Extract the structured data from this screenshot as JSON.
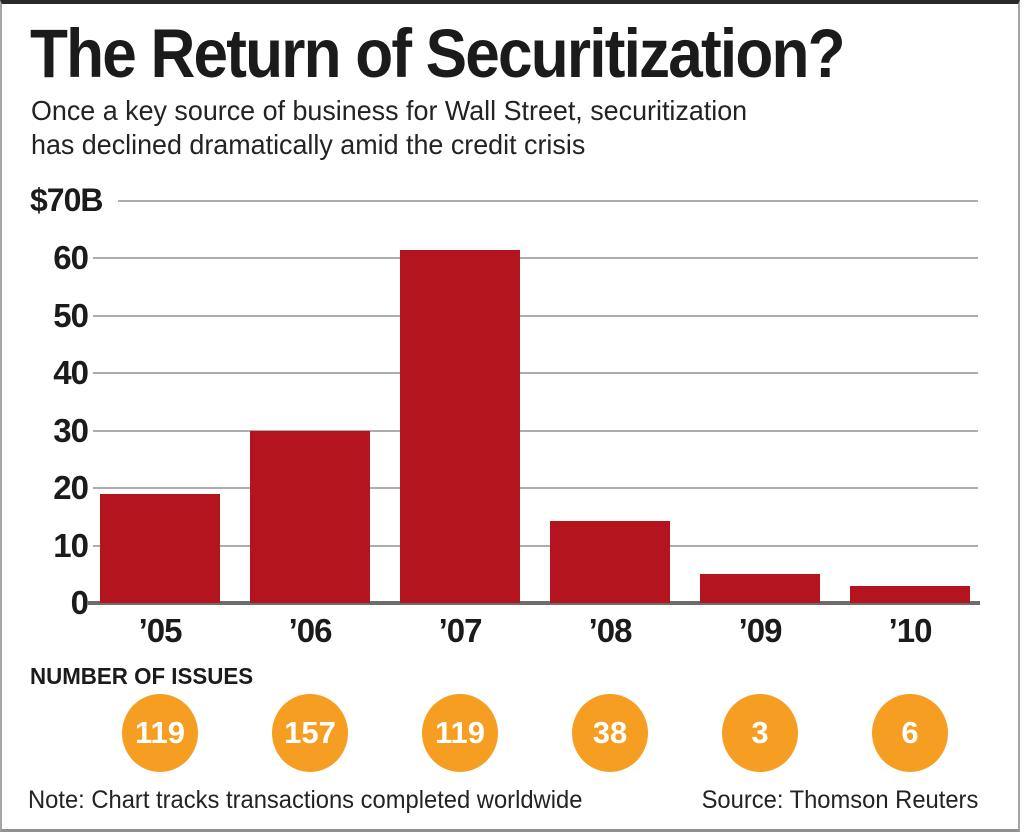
{
  "chart_data": {
    "type": "bar",
    "title": "The Return of Securitization?",
    "subtitle_lines": [
      "Once a key source of business for Wall Street, securitization",
      "has declined dramatically amid the credit crisis"
    ],
    "categories": [
      "’05",
      "’06",
      "’07",
      "’08",
      "’09",
      "’10"
    ],
    "values": [
      19,
      30,
      61.5,
      14.3,
      5,
      3
    ],
    "unit": "$ billions",
    "ylabel": "$70B",
    "ylim": [
      0,
      70
    ],
    "yticks": [
      0,
      10,
      20,
      30,
      40,
      50,
      60,
      70
    ],
    "ytick_labels": [
      "0",
      "10",
      "20",
      "30",
      "40",
      "50",
      "60",
      "$70B"
    ],
    "grid": true,
    "legend": "none",
    "bar_color": "#b4141d",
    "issues_label": "NUMBER OF ISSUES",
    "number_of_issues": [
      119,
      157,
      119,
      38,
      3,
      6
    ],
    "issues_circle_color": "#f59e21",
    "note": "Note: Chart tracks transactions completed worldwide",
    "source": "Source: Thomson Reuters"
  }
}
